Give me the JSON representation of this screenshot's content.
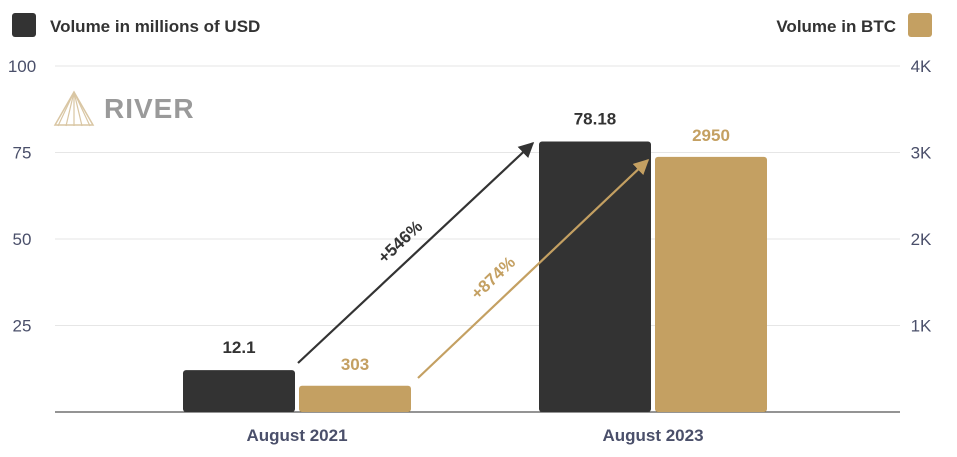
{
  "chart_data": {
    "type": "bar",
    "categories": [
      "August 2021",
      "August 2023"
    ],
    "series": [
      {
        "name": "Volume in millions of USD",
        "axis": "left",
        "color": "#333333",
        "values": [
          12.1,
          78.18
        ],
        "labels": [
          "12.1",
          "78.18"
        ]
      },
      {
        "name": "Volume in BTC",
        "axis": "right",
        "color": "#C4A062",
        "values": [
          303,
          2950
        ],
        "labels": [
          "303",
          "2950"
        ]
      }
    ],
    "ylim_left": [
      0,
      100
    ],
    "ylim_right": [
      0,
      4000
    ],
    "yticks_left": [
      {
        "value": 25,
        "label": "25"
      },
      {
        "value": 50,
        "label": "50"
      },
      {
        "value": 75,
        "label": "75"
      },
      {
        "value": 100,
        "label": "100"
      }
    ],
    "yticks_right": [
      {
        "value": 1000,
        "label": "1K"
      },
      {
        "value": 2000,
        "label": "2K"
      },
      {
        "value": 3000,
        "label": "3K"
      },
      {
        "value": 4000,
        "label": "4K"
      }
    ],
    "grid": true,
    "legend_position": "top",
    "annotations": [
      {
        "text": "+546%",
        "series": 0,
        "color": "#333333"
      },
      {
        "text": "+874%",
        "series": 1,
        "color": "#C4A062"
      }
    ],
    "logo_text": "RIVER",
    "colors": {
      "axis_text": "#4a4f6a",
      "grid": "#e6e6e6",
      "axis_line": "#555555",
      "logo": "#9a9a9a"
    }
  }
}
